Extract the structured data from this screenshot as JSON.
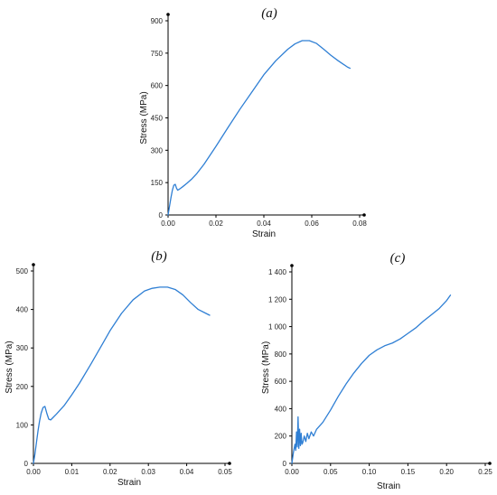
{
  "chart_data": [
    {
      "type": "line",
      "panel_label": "(a)",
      "xlabel": "Strain",
      "ylabel": "Stress (MPa)",
      "xlim": [
        0,
        0.08
      ],
      "ylim": [
        0,
        900
      ],
      "xticks": [
        "0.00",
        "0.02",
        "0.04",
        "0.06",
        "0.08"
      ],
      "yticks": [
        "0",
        "150",
        "300",
        "450",
        "600",
        "750",
        "900"
      ],
      "series": [
        {
          "color": "#2f7fd4",
          "x": [
            0,
            0.0006,
            0.0012,
            0.0018,
            0.0024,
            0.003,
            0.0035,
            0.004,
            0.0045,
            0.005,
            0.006,
            0.008,
            0.01,
            0.012,
            0.015,
            0.02,
            0.025,
            0.03,
            0.035,
            0.04,
            0.045,
            0.05,
            0.053,
            0.056,
            0.059,
            0.062,
            0.065,
            0.068,
            0.071,
            0.073,
            0.075,
            0.076
          ],
          "y": [
            0,
            40,
            80,
            115,
            138,
            142,
            125,
            115,
            118,
            122,
            130,
            148,
            168,
            192,
            235,
            318,
            405,
            490,
            570,
            650,
            715,
            768,
            793,
            808,
            808,
            795,
            768,
            740,
            715,
            700,
            685,
            680
          ]
        }
      ]
    },
    {
      "type": "line",
      "panel_label": "(b)",
      "xlabel": "Strain",
      "ylabel": "Stress (MPa)",
      "xlim": [
        0,
        0.05
      ],
      "ylim": [
        0,
        500
      ],
      "xticks": [
        "0.00",
        "0.01",
        "0.02",
        "0.03",
        "0.04",
        "0.05"
      ],
      "yticks": [
        "0",
        "100",
        "200",
        "300",
        "400",
        "500"
      ],
      "series": [
        {
          "color": "#2f7fd4",
          "x": [
            0,
            0.0004,
            0.0008,
            0.0012,
            0.0016,
            0.002,
            0.0025,
            0.003,
            0.0035,
            0.004,
            0.0045,
            0.005,
            0.006,
            0.008,
            0.01,
            0.012,
            0.015,
            0.018,
            0.02,
            0.023,
            0.026,
            0.029,
            0.031,
            0.033,
            0.035,
            0.037,
            0.039,
            0.041,
            0.043,
            0.045,
            0.046
          ],
          "y": [
            0,
            25,
            55,
            85,
            110,
            130,
            145,
            148,
            130,
            115,
            113,
            118,
            128,
            150,
            178,
            208,
            258,
            310,
            345,
            390,
            425,
            448,
            455,
            458,
            458,
            452,
            438,
            418,
            400,
            390,
            385
          ]
        }
      ]
    },
    {
      "type": "line",
      "panel_label": "(c)",
      "xlabel": "Strain",
      "ylabel": "Stress (MPa)",
      "xlim": [
        0,
        0.25
      ],
      "ylim": [
        0,
        1400
      ],
      "xticks": [
        "0.00",
        "0.05",
        "0.10",
        "0.15",
        "0.20",
        "0.25"
      ],
      "yticks": [
        "0",
        "200",
        "400",
        "600",
        "800",
        "1 000",
        "1 200",
        "1 400"
      ],
      "series": [
        {
          "color": "#2f7fd4",
          "x": [
            0,
            0.002,
            0.004,
            0.005,
            0.006,
            0.007,
            0.008,
            0.009,
            0.01,
            0.011,
            0.012,
            0.013,
            0.014,
            0.016,
            0.018,
            0.02,
            0.022,
            0.025,
            0.028,
            0.032,
            0.04,
            0.05,
            0.06,
            0.07,
            0.08,
            0.09,
            0.1,
            0.11,
            0.12,
            0.13,
            0.14,
            0.15,
            0.16,
            0.17,
            0.18,
            0.19,
            0.2,
            0.205
          ],
          "y": [
            0,
            80,
            140,
            95,
            230,
            120,
            340,
            110,
            250,
            130,
            220,
            140,
            150,
            200,
            160,
            220,
            180,
            230,
            200,
            250,
            300,
            390,
            490,
            580,
            660,
            730,
            790,
            830,
            860,
            880,
            910,
            950,
            990,
            1040,
            1085,
            1130,
            1190,
            1230
          ]
        }
      ]
    }
  ]
}
